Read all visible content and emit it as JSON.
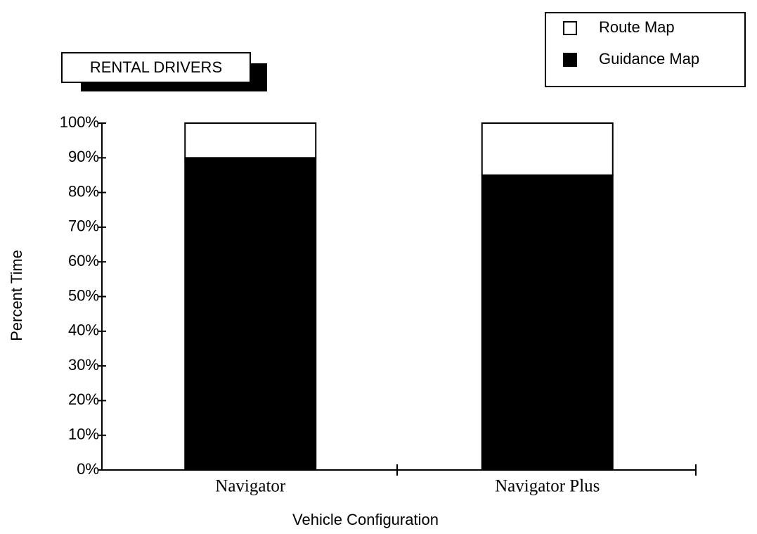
{
  "chart_data": {
    "type": "stacked_bar",
    "title": "RENTAL DRIVERS",
    "x_label": "Vehicle Configuration",
    "y_label": "Percent Time",
    "categories": [
      "Navigator",
      "Navigator Plus"
    ],
    "series": [
      {
        "name": "Route Map",
        "color": "#ffffff",
        "values": [
          10,
          15
        ]
      },
      {
        "name": "Guidance Map",
        "color": "#000000",
        "values": [
          90,
          85
        ]
      }
    ],
    "ylim": [
      0,
      100
    ],
    "yticks": [
      {
        "value": 0,
        "label": "0%"
      },
      {
        "value": 10,
        "label": "10%"
      },
      {
        "value": 20,
        "label": "20%"
      },
      {
        "value": 30,
        "label": "30%"
      },
      {
        "value": 40,
        "label": "40%"
      },
      {
        "value": 50,
        "label": "50%"
      },
      {
        "value": 60,
        "label": "60%"
      },
      {
        "value": 70,
        "label": "70%"
      },
      {
        "value": 80,
        "label": "80%"
      },
      {
        "value": 90,
        "label": "90%"
      },
      {
        "value": 100,
        "label": "100%"
      }
    ],
    "legend": "top-right"
  }
}
